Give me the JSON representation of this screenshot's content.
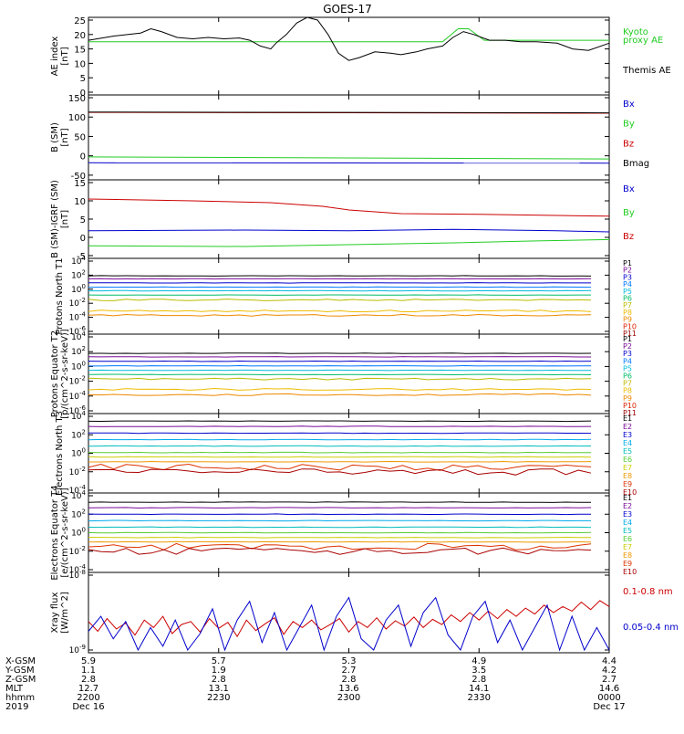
{
  "title": "GOES-17",
  "colors": {
    "black": "#000000",
    "green": "#22cc22",
    "red": "#cc0000",
    "blue": "#0000cc"
  },
  "proton_channels": [
    "P1",
    "P2",
    "P3",
    "P4",
    "P5",
    "P6",
    "P7",
    "P8",
    "P9",
    "P10",
    "P11"
  ],
  "proton_colors": [
    "#000000",
    "#7a0a9a",
    "#0000cc",
    "#0077ff",
    "#00bbdd",
    "#00bb66",
    "#bbbb00",
    "#eebb00",
    "#ee8800",
    "#dd2200",
    "#990000"
  ],
  "electron_channels": [
    "E1",
    "E2",
    "E3",
    "E4",
    "E5",
    "E6",
    "E7",
    "E8",
    "E9",
    "E10"
  ],
  "electron_colors": [
    "#000000",
    "#7a0a9a",
    "#0000cc",
    "#00aaee",
    "#00bbbb",
    "#55cc33",
    "#cccc00",
    "#ee9900",
    "#dd3300",
    "#aa0000"
  ],
  "footer": {
    "row_labels": [
      "X-GSM",
      "Y-GSM",
      "Z-GSM",
      "MLT",
      "hhmm",
      "2019"
    ],
    "columns": [
      {
        "values": [
          "5.9",
          "1.1",
          "2.8",
          "12.7",
          "2200",
          "Dec 16"
        ]
      },
      {
        "values": [
          "5.7",
          "1.9",
          "2.8",
          "13.1",
          "2230",
          ""
        ]
      },
      {
        "values": [
          "5.3",
          "2.7",
          "2.8",
          "13.6",
          "2300",
          ""
        ]
      },
      {
        "values": [
          "4.9",
          "3.5",
          "2.8",
          "14.1",
          "2330",
          ""
        ]
      },
      {
        "values": [
          "4.4",
          "4.2",
          "2.7",
          "14.6",
          "0000",
          "Dec 17"
        ]
      }
    ]
  },
  "chart_data": [
    {
      "type": "line",
      "ylabel": "AE index [nT]",
      "ylim": [
        0,
        25
      ],
      "yticks": [
        "0",
        "5",
        "10",
        "15",
        "20",
        "25"
      ],
      "series": [
        {
          "name": "Kyoto proxy AE",
          "color": "#22cc22",
          "x": [
            0,
            0.55,
            0.68,
            0.7,
            0.71,
            0.73,
            0.76,
            1.0
          ],
          "y": [
            17.5,
            17.5,
            17.5,
            20.5,
            22,
            22,
            18,
            18
          ]
        },
        {
          "name": "Themis AE",
          "color": "#000000",
          "x": [
            0,
            0.05,
            0.1,
            0.12,
            0.14,
            0.17,
            0.2,
            0.23,
            0.26,
            0.29,
            0.31,
            0.33,
            0.35,
            0.36,
            0.38,
            0.4,
            0.42,
            0.44,
            0.46,
            0.48,
            0.5,
            0.52,
            0.55,
            0.58,
            0.6,
            0.63,
            0.65,
            0.68,
            0.7,
            0.72,
            0.74,
            0.77,
            0.8,
            0.83,
            0.86,
            0.9,
            0.93,
            0.96,
            1.0
          ],
          "y": [
            18,
            19.5,
            20.5,
            22,
            21,
            19,
            18.5,
            19,
            18.5,
            18.8,
            18,
            16,
            15,
            17,
            20,
            24,
            26,
            25,
            20,
            13.5,
            11,
            12,
            14,
            13.5,
            13,
            14,
            15,
            16,
            19,
            21,
            20,
            18,
            18,
            17.5,
            17.5,
            17,
            15,
            14.5,
            17
          ]
        }
      ],
      "legend": [
        {
          "text": "Kyoto",
          "color": "#22cc22"
        },
        {
          "text": "proxy AE",
          "color": "#22cc22"
        },
        {
          "text": "Themis AE",
          "color": "#000000"
        }
      ]
    },
    {
      "type": "line",
      "ylabel": "B (SM) [nT]",
      "ylim": [
        -55,
        150
      ],
      "yticks": [
        "-50",
        "0",
        "50",
        "100",
        "150"
      ],
      "series": [
        {
          "name": "Bz",
          "color": "#cc0000",
          "x": [
            0,
            1
          ],
          "y": [
            112,
            110
          ]
        },
        {
          "name": "Bmag",
          "color": "#000000",
          "x": [
            0,
            1
          ],
          "y": [
            113,
            111
          ]
        },
        {
          "name": "By",
          "color": "#22cc22",
          "x": [
            0,
            1
          ],
          "y": [
            -3,
            -8
          ]
        },
        {
          "name": "Bx",
          "color": "#0000cc",
          "x": [
            0,
            1
          ],
          "y": [
            -18,
            -19
          ]
        }
      ],
      "legend": [
        {
          "text": "Bx",
          "color": "#0000cc"
        },
        {
          "text": "By",
          "color": "#22cc22"
        },
        {
          "text": "Bz",
          "color": "#cc0000"
        },
        {
          "text": "Bmag",
          "color": "#000000"
        }
      ]
    },
    {
      "type": "line",
      "ylabel": "B (SM)-IGRF (SM) [nT]",
      "ylim": [
        -5,
        15
      ],
      "yticks": [
        "-5",
        "0",
        "5",
        "10",
        "15"
      ],
      "series": [
        {
          "name": "Bz",
          "color": "#cc0000",
          "x": [
            0,
            0.2,
            0.35,
            0.45,
            0.5,
            0.6,
            0.75,
            0.9,
            1.0
          ],
          "y": [
            10.5,
            10,
            9.5,
            8.5,
            7.5,
            6.5,
            6.3,
            6.0,
            5.8
          ]
        },
        {
          "name": "Bx",
          "color": "#0000cc",
          "x": [
            0,
            0.3,
            0.5,
            0.7,
            0.9,
            1.0
          ],
          "y": [
            1.8,
            2.0,
            1.8,
            2.2,
            1.8,
            1.5
          ]
        },
        {
          "name": "By",
          "color": "#22cc22",
          "x": [
            0,
            0.3,
            0.5,
            0.7,
            0.85,
            1.0
          ],
          "y": [
            -2.3,
            -2.5,
            -2.0,
            -1.5,
            -1.0,
            -0.6
          ]
        }
      ],
      "legend": [
        {
          "text": "Bx",
          "color": "#0000cc"
        },
        {
          "text": "By",
          "color": "#22cc22"
        },
        {
          "text": "Bz",
          "color": "#cc0000"
        }
      ]
    },
    {
      "type": "line",
      "ylabel": "Protons North T1",
      "log_scale": true,
      "ylim": [
        1e-06,
        10000.0
      ],
      "yticks": [
        "10^4",
        "10^2",
        "10^0",
        "10^-2",
        "10^-4",
        "10^-6"
      ],
      "series_levels": [
        80,
        30,
        8,
        2,
        0.6,
        0.15,
        0.03,
        0.0008,
        0.0002,
        null,
        null
      ]
    },
    {
      "type": "line",
      "ylabel": "Protons Equator T2 [p/(cm^2-s-sr-keV)]",
      "log_scale": true,
      "ylim": [
        1e-06,
        10000.0
      ],
      "yticks": [
        "10^4",
        "10^2",
        "10^0",
        "10^-2",
        "10^-4",
        "10^-6"
      ],
      "series_levels": [
        60,
        20,
        5,
        1.2,
        0.3,
        0.08,
        0.02,
        0.0008,
        0.00015,
        null,
        null
      ]
    },
    {
      "type": "line",
      "ylabel": "Electrons North T3",
      "log_scale": true,
      "ylim": [
        0.0001,
        10000.0
      ],
      "yticks": [
        "10^4",
        "10^2",
        "10^0",
        "10^-2",
        "10^-4"
      ],
      "series_levels": [
        3000,
        800,
        150,
        30,
        6,
        1.2,
        0.4,
        0.12,
        0.03,
        0.01
      ]
    },
    {
      "type": "line",
      "ylabel": "Electrons Equator T4 [e/(cm^2-s-sr-keV)]",
      "log_scale": true,
      "ylim": [
        0.0001,
        10000.0
      ],
      "yticks": [
        "10^4",
        "10^2",
        "10^0",
        "10^-2",
        "10^-4"
      ],
      "series_levels": [
        2000,
        500,
        100,
        20,
        4,
        1.0,
        0.3,
        0.1,
        0.03,
        0.01
      ]
    },
    {
      "type": "line",
      "ylabel": "Xray flux [W/m^2]",
      "log_scale": true,
      "ylim": [
        1e-09,
        1e-08
      ],
      "yticks": [
        "10^-8",
        "10^-9"
      ],
      "series": [
        {
          "name": "0.1-0.8 nm",
          "color": "#cc0000",
          "y": [
            -8.62,
            -8.75,
            -8.58,
            -8.72,
            -8.64,
            -8.8,
            -8.6,
            -8.7,
            -8.55,
            -8.78,
            -8.66,
            -8.62,
            -8.76,
            -8.58,
            -8.71,
            -8.63,
            -8.82,
            -8.6,
            -8.74,
            -8.65,
            -8.57,
            -8.79,
            -8.62,
            -8.7,
            -8.6,
            -8.73,
            -8.66,
            -8.58,
            -8.76,
            -8.62,
            -8.7,
            -8.57,
            -8.72,
            -8.61,
            -8.68,
            -8.56,
            -8.7,
            -8.59,
            -8.66,
            -8.53,
            -8.62,
            -8.5,
            -8.6,
            -8.48,
            -8.58,
            -8.46,
            -8.55,
            -8.44,
            -8.52,
            -8.4,
            -8.5,
            -8.42,
            -8.48,
            -8.36,
            -8.46,
            -8.34,
            -8.42
          ]
        },
        {
          "name": "0.05-0.4 nm",
          "color": "#0000cc",
          "y": [
            -8.75,
            -8.55,
            -8.85,
            -8.62,
            -9.0,
            -8.7,
            -8.95,
            -8.6,
            -9.0,
            -8.78,
            -8.45,
            -9.0,
            -8.6,
            -8.35,
            -8.9,
            -8.5,
            -9.0,
            -8.7,
            -8.4,
            -9.0,
            -8.55,
            -8.3,
            -8.85,
            -9.0,
            -8.6,
            -8.4,
            -8.95,
            -8.5,
            -8.3,
            -8.8,
            -9.0,
            -8.55,
            -8.35,
            -8.9,
            -8.6,
            -9.0,
            -8.7,
            -8.4,
            -9.0,
            -8.55,
            -9.0,
            -8.7,
            -9.0
          ]
        }
      ],
      "legend": [
        {
          "text": "0.1-0.8 nm",
          "color": "#cc0000"
        },
        {
          "text": "0.05-0.4 nm",
          "color": "#0000cc"
        }
      ]
    }
  ]
}
